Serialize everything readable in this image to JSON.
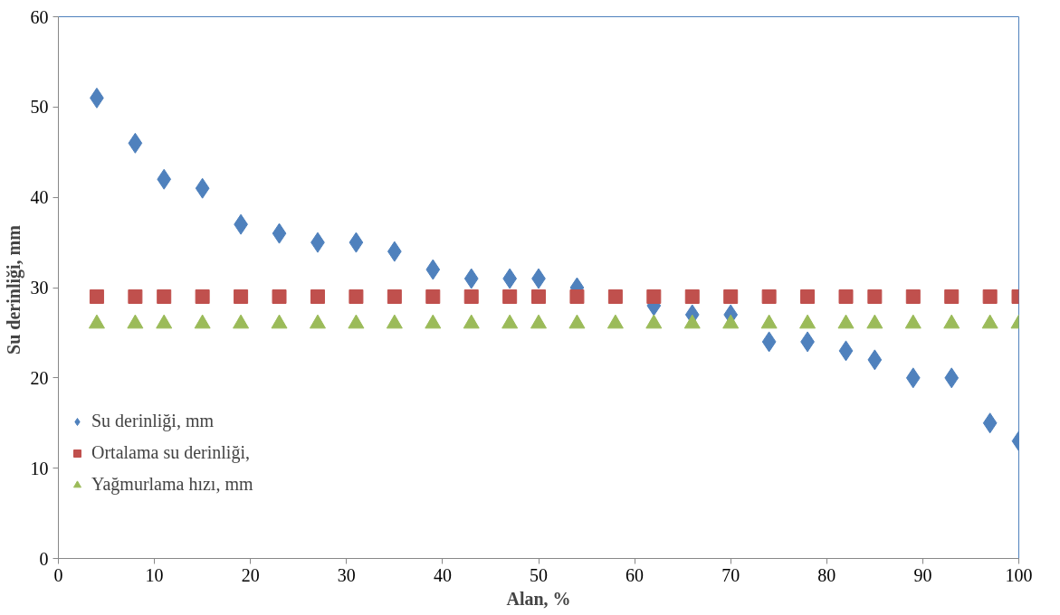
{
  "chart_data": {
    "type": "scatter",
    "xlabel": "Alan, %",
    "ylabel": "Su derinliği,  mm",
    "x": [
      4,
      8,
      11,
      15,
      19,
      23,
      27,
      31,
      35,
      39,
      43,
      47,
      50,
      54,
      58,
      62,
      66,
      70,
      74,
      78,
      82,
      85,
      89,
      93,
      97,
      100
    ],
    "series": [
      {
        "name": "Su derinliği, mm",
        "color": "#4f81bd",
        "marker": "diamond",
        "values": [
          51,
          46,
          42,
          41,
          37,
          36,
          35,
          35,
          34,
          32,
          31,
          31,
          31,
          30,
          null,
          28,
          27,
          27,
          24,
          24,
          23,
          22,
          20,
          20,
          15,
          13
        ]
      },
      {
        "name": "Ortalama su derinliği,",
        "color": "#c0504d",
        "marker": "square",
        "values": [
          29,
          29,
          29,
          29,
          29,
          29,
          29,
          29,
          29,
          29,
          29,
          29,
          29,
          29,
          29,
          29,
          29,
          29,
          29,
          29,
          29,
          29,
          29,
          29,
          29,
          29
        ]
      },
      {
        "name": "Yağmurlama hızı, mm",
        "color": "#9bbb59",
        "marker": "triangle",
        "values": [
          26,
          26,
          26,
          26,
          26,
          26,
          26,
          26,
          26,
          26,
          26,
          26,
          26,
          26,
          26,
          26,
          26,
          26,
          26,
          26,
          26,
          26,
          26,
          26,
          26,
          26
        ]
      }
    ],
    "xlim": [
      0,
      100
    ],
    "xticks": [
      0,
      10,
      20,
      30,
      40,
      50,
      60,
      70,
      80,
      90,
      100
    ],
    "ylim": [
      0,
      60
    ],
    "yticks": [
      0,
      10,
      20,
      30,
      40,
      50,
      60
    ],
    "grid": false,
    "legend": "left"
  }
}
